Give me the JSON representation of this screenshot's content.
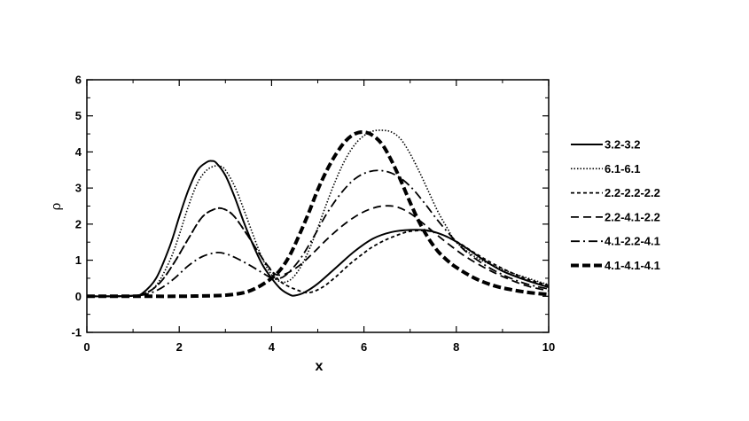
{
  "chart_data": {
    "type": "line",
    "title": "",
    "xlabel": "x",
    "ylabel": "ρ",
    "xlim": [
      0,
      10
    ],
    "ylim": [
      -1,
      6
    ],
    "x_ticks": [
      0,
      2,
      4,
      6,
      8,
      10
    ],
    "x_tick_labels": [
      "0",
      "2",
      "4",
      "6",
      "8",
      "10"
    ],
    "y_ticks": [
      -1,
      0,
      1,
      2,
      3,
      4,
      5,
      6
    ],
    "y_tick_labels": [
      "-1",
      "0",
      "1",
      "2",
      "3",
      "4",
      "5",
      "6"
    ],
    "grid": false,
    "legend_position": "right",
    "series": [
      {
        "name": "3.2-3.2",
        "style": "solid",
        "x": [
          0,
          0.5,
          1,
          1.2,
          1.5,
          1.8,
          2.0,
          2.2,
          2.4,
          2.6,
          2.7,
          2.8,
          3.0,
          3.2,
          3.4,
          3.6,
          3.8,
          4.0,
          4.2,
          4.4,
          4.5,
          4.7,
          5.0,
          5.4,
          5.8,
          6.2,
          6.6,
          7.0,
          7.4,
          7.8,
          8.2,
          8.6,
          9.0,
          9.5,
          10
        ],
        "y": [
          0,
          0,
          0.02,
          0.08,
          0.5,
          1.4,
          2.2,
          2.95,
          3.5,
          3.72,
          3.75,
          3.7,
          3.35,
          2.75,
          2.05,
          1.42,
          0.88,
          0.5,
          0.2,
          0.04,
          0.02,
          0.1,
          0.35,
          0.8,
          1.25,
          1.6,
          1.78,
          1.84,
          1.82,
          1.65,
          1.35,
          1.0,
          0.7,
          0.45,
          0.25
        ]
      },
      {
        "name": "6.1-6.1",
        "style": "dotted",
        "x": [
          0,
          0.5,
          1,
          1.2,
          1.5,
          1.8,
          2.0,
          2.2,
          2.4,
          2.6,
          2.8,
          2.9,
          3.0,
          3.2,
          3.4,
          3.6,
          3.8,
          4.0,
          4.2,
          4.4,
          4.6,
          4.8,
          5.0,
          5.2,
          5.4,
          5.6,
          5.8,
          6.0,
          6.2,
          6.4,
          6.6,
          6.8,
          7.0,
          7.2,
          7.4,
          7.6,
          7.8,
          8.0,
          8.4,
          8.8,
          9.2,
          9.6,
          10
        ],
        "y": [
          0,
          0,
          0.01,
          0.05,
          0.3,
          1.0,
          1.7,
          2.5,
          3.15,
          3.5,
          3.62,
          3.6,
          3.5,
          3.05,
          2.4,
          1.7,
          1.05,
          0.6,
          0.4,
          0.45,
          0.75,
          1.25,
          1.9,
          2.6,
          3.25,
          3.8,
          4.2,
          4.45,
          4.58,
          4.6,
          4.55,
          4.35,
          3.95,
          3.45,
          2.9,
          2.35,
          1.9,
          1.5,
          1.1,
          0.85,
          0.65,
          0.48,
          0.32
        ]
      },
      {
        "name": "2.2-2.2-2.2",
        "style": "short-dash",
        "x": [
          0,
          0.5,
          1,
          1.3,
          1.6,
          1.9,
          2.2,
          2.5,
          2.8,
          3.0,
          3.2,
          3.5,
          3.8,
          4.0,
          4.2,
          4.5,
          4.8,
          5.1,
          5.4,
          5.7,
          6.0,
          6.2,
          6.5,
          6.8,
          7.0,
          7.3,
          7.6,
          8.0,
          8.4,
          8.8,
          9.2,
          9.6,
          10
        ],
        "y": [
          0,
          0,
          0.01,
          0.1,
          0.4,
          0.95,
          1.6,
          2.2,
          2.43,
          2.4,
          2.2,
          1.65,
          1.05,
          0.7,
          0.4,
          0.2,
          0.1,
          0.25,
          0.55,
          0.9,
          1.2,
          1.38,
          1.58,
          1.73,
          1.8,
          1.82,
          1.75,
          1.52,
          1.2,
          0.9,
          0.65,
          0.45,
          0.3
        ]
      },
      {
        "name": "2.2-4.1-2.2",
        "style": "long-dash",
        "x": [
          0,
          0.5,
          1,
          1.3,
          1.6,
          1.9,
          2.2,
          2.5,
          2.8,
          3.0,
          3.2,
          3.5,
          3.8,
          4.0,
          4.1,
          4.3,
          4.6,
          4.9,
          5.2,
          5.5,
          5.8,
          6.1,
          6.4,
          6.7,
          7.0,
          7.3,
          7.6,
          7.9,
          8.2,
          8.6,
          9.0,
          9.5,
          10
        ],
        "y": [
          0,
          0,
          0.01,
          0.1,
          0.4,
          0.95,
          1.6,
          2.2,
          2.43,
          2.4,
          2.2,
          1.65,
          1.05,
          0.72,
          0.6,
          0.62,
          0.85,
          1.2,
          1.58,
          1.92,
          2.2,
          2.4,
          2.5,
          2.48,
          2.3,
          2.0,
          1.68,
          1.38,
          1.1,
          0.8,
          0.55,
          0.3,
          0.15
        ]
      },
      {
        "name": "4.1-2.2-4.1",
        "style": "dash-dot",
        "x": [
          0,
          0.5,
          1,
          1.3,
          1.6,
          1.9,
          2.2,
          2.5,
          2.8,
          3.0,
          3.2,
          3.5,
          3.8,
          4.0,
          4.1,
          4.3,
          4.6,
          4.9,
          5.2,
          5.5,
          5.8,
          6.1,
          6.4,
          6.7,
          7.0,
          7.3,
          7.6,
          7.9,
          8.2,
          8.6,
          9.0,
          9.5,
          10
        ],
        "y": [
          0,
          0,
          0.01,
          0.06,
          0.22,
          0.5,
          0.85,
          1.1,
          1.21,
          1.18,
          1.08,
          0.88,
          0.65,
          0.5,
          0.48,
          0.58,
          1.0,
          1.62,
          2.3,
          2.85,
          3.25,
          3.45,
          3.48,
          3.35,
          3.05,
          2.6,
          2.1,
          1.65,
          1.25,
          0.88,
          0.6,
          0.35,
          0.2
        ]
      },
      {
        "name": "4.1-4.1-4.1",
        "style": "bold-dash",
        "x": [
          0,
          1,
          2,
          2.5,
          3.0,
          3.4,
          3.7,
          4.0,
          4.2,
          4.4,
          4.6,
          4.8,
          5.0,
          5.2,
          5.4,
          5.6,
          5.8,
          6.0,
          6.2,
          6.4,
          6.6,
          6.8,
          7.0,
          7.2,
          7.4,
          7.6,
          7.8,
          8.0,
          8.4,
          8.8,
          9.2,
          9.6,
          10
        ],
        "y": [
          0,
          0,
          0,
          0.01,
          0.03,
          0.1,
          0.25,
          0.5,
          0.75,
          1.15,
          1.7,
          2.3,
          2.95,
          3.5,
          3.95,
          4.3,
          4.5,
          4.55,
          4.45,
          4.2,
          3.75,
          3.2,
          2.6,
          2.05,
          1.6,
          1.25,
          1.0,
          0.8,
          0.5,
          0.3,
          0.18,
          0.1,
          0.05
        ]
      }
    ]
  }
}
